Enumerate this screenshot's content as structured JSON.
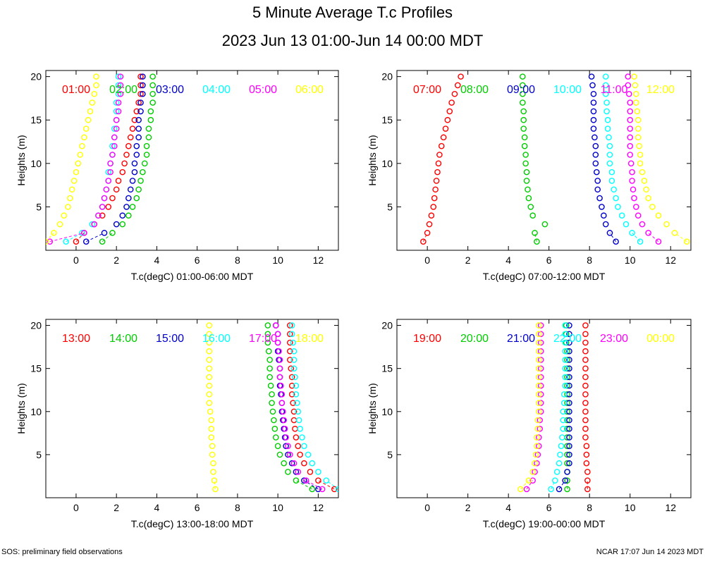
{
  "title": "5 Minute Average T.c Profiles",
  "subtitle": "2023 Jun 13 01:00-Jun 14 00:00 MDT",
  "footer_left": "SOS: preliminary field observations",
  "footer_right": "NCAR 17:07 Jun 14 2023 MDT",
  "colors": [
    "#ff0000",
    "#00cc00",
    "#0000cc",
    "#00ffff",
    "#ff00ff",
    "#ffff00"
  ],
  "chart_data": [
    {
      "type": "scatter",
      "xlabel": "T.c(degC) 01:00-06:00 MDT",
      "ylabel": "Heights (m)",
      "xlim": [
        -1.5,
        13
      ],
      "ylim": [
        0,
        20.7
      ],
      "xticks": [
        0,
        2,
        4,
        6,
        8,
        10,
        12
      ],
      "yticks": [
        5,
        10,
        15,
        20
      ],
      "heights": [
        1,
        2,
        3,
        4,
        5,
        6,
        7,
        8,
        9,
        10,
        11,
        12,
        13,
        14,
        15,
        16,
        17,
        18,
        19,
        20
      ],
      "series": [
        {
          "name": "01:00",
          "values": [
            0.0,
            0.4,
            0.9,
            1.3,
            1.6,
            1.8,
            2.0,
            2.1,
            2.3,
            2.4,
            2.5,
            2.6,
            2.7,
            2.8,
            2.9,
            3.0,
            3.1,
            3.2,
            3.2,
            3.2
          ]
        },
        {
          "name": "02:00",
          "values": [
            1.3,
            1.8,
            2.3,
            2.6,
            2.8,
            3.0,
            3.1,
            3.2,
            3.3,
            3.4,
            3.5,
            3.5,
            3.6,
            3.6,
            3.7,
            3.7,
            3.8,
            3.8,
            3.8,
            3.8
          ]
        },
        {
          "name": "03:00",
          "values": [
            0.5,
            1.4,
            2.0,
            2.3,
            2.5,
            2.6,
            2.7,
            2.8,
            2.9,
            2.9,
            3.0,
            3.0,
            3.1,
            3.1,
            3.1,
            3.2,
            3.2,
            3.3,
            3.3,
            3.3
          ]
        },
        {
          "name": "04:00",
          "values": [
            -0.5,
            0.3,
            0.8,
            1.1,
            1.3,
            1.4,
            1.5,
            1.6,
            1.6,
            1.7,
            1.8,
            1.8,
            1.9,
            1.9,
            2.0,
            2.0,
            2.0,
            2.1,
            2.1,
            2.1
          ]
        },
        {
          "name": "05:00",
          "values": [
            -1.3,
            0.4,
            0.9,
            1.1,
            1.3,
            1.4,
            1.5,
            1.6,
            1.7,
            1.7,
            1.8,
            1.9,
            1.9,
            2.0,
            2.0,
            2.1,
            2.1,
            2.2,
            2.2,
            2.2
          ]
        },
        {
          "name": "06:00",
          "values": [
            -1.5,
            -1.1,
            -0.8,
            -0.6,
            -0.4,
            -0.3,
            -0.2,
            -0.1,
            0.0,
            0.1,
            0.2,
            0.3,
            0.4,
            0.5,
            0.6,
            0.7,
            0.8,
            0.9,
            1.0,
            1.0
          ]
        }
      ]
    },
    {
      "type": "scatter",
      "xlabel": "T.c(degC) 07:00-12:00 MDT",
      "ylabel": "Heights (m)",
      "xlim": [
        -1.5,
        13
      ],
      "ylim": [
        0,
        20.7
      ],
      "xticks": [
        0,
        2,
        4,
        6,
        8,
        10,
        12
      ],
      "yticks": [
        5,
        10,
        15,
        20
      ],
      "heights": [
        1,
        2,
        3,
        4,
        5,
        6,
        7,
        8,
        9,
        10,
        11,
        12,
        13,
        14,
        15,
        16,
        17,
        18,
        19,
        20
      ],
      "series": [
        {
          "name": "07:00",
          "values": [
            -0.2,
            0.0,
            0.1,
            0.2,
            0.3,
            0.35,
            0.4,
            0.45,
            0.5,
            0.55,
            0.6,
            0.7,
            0.8,
            0.9,
            1.0,
            1.1,
            1.2,
            1.35,
            1.5,
            1.65
          ]
        },
        {
          "name": "08:00",
          "values": [
            5.4,
            5.3,
            5.8,
            5.2,
            5.1,
            5.0,
            4.95,
            4.9,
            4.9,
            4.85,
            4.85,
            4.8,
            4.8,
            4.75,
            4.75,
            4.75,
            4.7,
            4.7,
            4.7,
            4.7
          ]
        },
        {
          "name": "09:00",
          "values": [
            9.3,
            9.0,
            8.8,
            8.7,
            8.6,
            8.5,
            8.4,
            8.4,
            8.35,
            8.3,
            8.3,
            8.3,
            8.25,
            8.2,
            8.2,
            8.2,
            8.2,
            8.2,
            8.15,
            8.1
          ]
        },
        {
          "name": "10:00",
          "values": [
            10.5,
            10.1,
            9.8,
            9.6,
            9.4,
            9.3,
            9.2,
            9.1,
            9.1,
            9.0,
            9.0,
            9.0,
            8.95,
            8.9,
            8.9,
            8.85,
            8.85,
            8.8,
            8.8,
            8.8
          ]
        },
        {
          "name": "11:00",
          "values": [
            11.4,
            10.9,
            10.6,
            10.4,
            10.3,
            10.2,
            10.15,
            10.1,
            10.1,
            10.05,
            10.0,
            10.0,
            10.0,
            10.0,
            10.0,
            10.0,
            10.0,
            9.95,
            9.9,
            9.9
          ]
        },
        {
          "name": "12:00",
          "values": [
            12.8,
            12.2,
            11.8,
            11.4,
            11.1,
            10.9,
            10.8,
            10.7,
            10.6,
            10.5,
            10.5,
            10.45,
            10.4,
            10.4,
            10.4,
            10.35,
            10.3,
            10.3,
            10.25,
            10.2
          ]
        }
      ]
    },
    {
      "type": "scatter",
      "xlabel": "T.c(degC) 13:00-18:00 MDT",
      "ylabel": "Heights (m)",
      "xlim": [
        -1.5,
        13
      ],
      "ylim": [
        0,
        20.7
      ],
      "xticks": [
        0,
        2,
        4,
        6,
        8,
        10,
        12
      ],
      "yticks": [
        5,
        10,
        15,
        20
      ],
      "heights": [
        1,
        2,
        3,
        4,
        5,
        6,
        7,
        8,
        9,
        10,
        11,
        12,
        13,
        14,
        15,
        16,
        17,
        18,
        19,
        20
      ],
      "series": [
        {
          "name": "13:00",
          "values": [
            12.8,
            12.0,
            11.6,
            11.3,
            11.1,
            11.0,
            10.9,
            10.85,
            10.8,
            10.8,
            10.75,
            10.7,
            10.7,
            10.7,
            10.65,
            10.6,
            10.6,
            10.6,
            10.6,
            10.6
          ]
        },
        {
          "name": "14:00",
          "values": [
            11.7,
            10.9,
            10.5,
            10.3,
            10.1,
            10.0,
            9.9,
            9.85,
            9.8,
            9.75,
            9.7,
            9.7,
            9.65,
            9.6,
            9.6,
            9.6,
            9.55,
            9.5,
            9.5,
            9.5
          ]
        },
        {
          "name": "15:00",
          "values": [
            12.0,
            11.3,
            10.9,
            10.7,
            10.5,
            10.4,
            10.35,
            10.3,
            10.25,
            10.2,
            10.2,
            10.15,
            10.1,
            10.1,
            10.1,
            10.05,
            10.0,
            10.0,
            10.0,
            9.9
          ]
        },
        {
          "name": "16:00",
          "values": [
            13.0,
            12.4,
            12.0,
            11.7,
            11.5,
            11.3,
            11.2,
            11.1,
            11.05,
            11.0,
            10.95,
            10.9,
            10.9,
            10.85,
            10.8,
            10.8,
            10.8,
            10.75,
            10.7,
            10.7
          ]
        },
        {
          "name": "17:00",
          "values": [
            12.2,
            11.4,
            11.0,
            10.8,
            10.6,
            10.5,
            10.4,
            10.35,
            10.3,
            10.25,
            10.2,
            10.2,
            10.15,
            10.1,
            10.1,
            10.1,
            10.05,
            10.0,
            10.0,
            9.9
          ]
        },
        {
          "name": "18:00",
          "values": [
            6.9,
            6.85,
            6.8,
            6.8,
            6.75,
            6.75,
            6.7,
            6.7,
            6.7,
            6.65,
            6.6,
            6.6,
            6.6,
            6.6,
            6.6,
            6.6,
            6.6,
            6.6,
            6.6,
            6.6
          ]
        }
      ]
    },
    {
      "type": "scatter",
      "xlabel": "T.c(degC) 19:00-00:00 MDT",
      "ylabel": "Heights (m)",
      "xlim": [
        -1.5,
        13
      ],
      "ylim": [
        0,
        20.7
      ],
      "xticks": [
        0,
        2,
        4,
        6,
        8,
        10,
        12
      ],
      "yticks": [
        5,
        10,
        15,
        20
      ],
      "heights": [
        1,
        2,
        3,
        4,
        5,
        6,
        7,
        8,
        9,
        10,
        11,
        12,
        13,
        14,
        15,
        16,
        17,
        18,
        19,
        20
      ],
      "series": [
        {
          "name": "19:00",
          "values": [
            7.9,
            7.9,
            7.9,
            7.85,
            7.85,
            7.85,
            7.8,
            7.8,
            7.8,
            7.8,
            7.8,
            7.8,
            7.8,
            7.8,
            7.8,
            7.8,
            7.8,
            7.8,
            7.8,
            7.8
          ]
        },
        {
          "name": "20:00",
          "values": [
            6.9,
            6.9,
            6.9,
            6.9,
            6.9,
            6.9,
            6.9,
            6.9,
            6.9,
            6.9,
            6.9,
            6.9,
            6.9,
            6.9,
            6.9,
            6.9,
            6.9,
            6.85,
            6.85,
            6.85
          ]
        },
        {
          "name": "21:00",
          "values": [
            6.5,
            6.8,
            6.9,
            7.0,
            7.0,
            7.0,
            7.0,
            7.0,
            7.0,
            7.0,
            7.0,
            7.0,
            7.0,
            7.0,
            7.0,
            7.0,
            7.0,
            7.0,
            7.0,
            7.0
          ]
        },
        {
          "name": "22:00",
          "values": [
            6.1,
            6.3,
            6.4,
            6.5,
            6.55,
            6.6,
            6.65,
            6.7,
            6.7,
            6.7,
            6.75,
            6.75,
            6.8,
            6.8,
            6.8,
            6.8,
            6.8,
            6.8,
            6.8,
            6.8
          ]
        },
        {
          "name": "23:00",
          "values": [
            4.9,
            5.2,
            5.3,
            5.4,
            5.45,
            5.5,
            5.5,
            5.55,
            5.55,
            5.6,
            5.6,
            5.6,
            5.6,
            5.6,
            5.6,
            5.6,
            5.6,
            5.6,
            5.6,
            5.6
          ]
        },
        {
          "name": "00:00",
          "values": [
            4.6,
            5.0,
            5.2,
            5.3,
            5.35,
            5.4,
            5.4,
            5.45,
            5.45,
            5.5,
            5.5,
            5.5,
            5.5,
            5.5,
            5.5,
            5.5,
            5.5,
            5.5,
            5.5,
            5.5
          ]
        }
      ]
    }
  ]
}
